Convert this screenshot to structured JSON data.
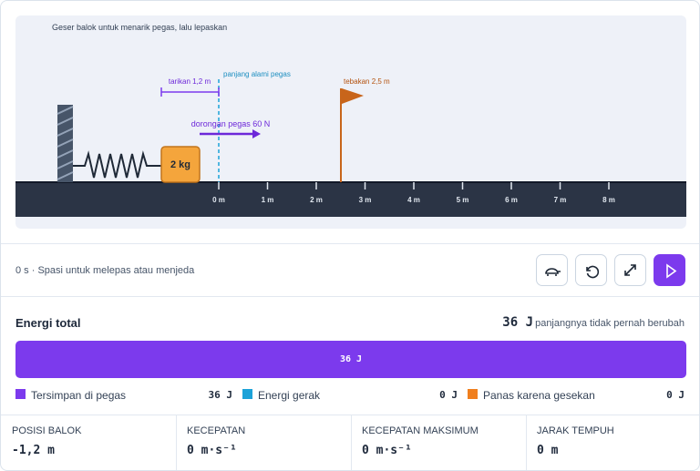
{
  "scene": {
    "instruction": "Geser balok untuk menarik pegas, lalu lepaskan",
    "pull_label": "tarikan 1,2 m",
    "natural_length_label": "panjang alami pegas",
    "guess_label": "tebakan 2,5 m",
    "force_label": "dorongan pegas 60 N",
    "block_label": "2 kg",
    "ruler_ticks": [
      "0 m",
      "1 m",
      "2 m",
      "3 m",
      "4 m",
      "5 m",
      "6 m",
      "7 m",
      "8 m"
    ]
  },
  "controls": {
    "status": "0 s · Spasi untuk melepas atau menjeda"
  },
  "energy": {
    "title": "Energi total",
    "total": "36 J",
    "note": "panjangnya tidak pernah berubah",
    "bar_label": "36 J",
    "legend": [
      {
        "label": "Tersimpan di pegas",
        "value": "36 J"
      },
      {
        "label": "Energi gerak",
        "value": "0 J"
      },
      {
        "label": "Panas karena gesekan",
        "value": "0 J"
      }
    ]
  },
  "stats": [
    {
      "label": "POSISI BALOK",
      "value": "-1,2 m"
    },
    {
      "label": "KECEPATAN",
      "value": "0 m·s⁻¹"
    },
    {
      "label": "KECEPATAN MAKSIMUM",
      "value": "0 m·s⁻¹"
    },
    {
      "label": "JARAK TEMPUH",
      "value": "0 m"
    }
  ]
}
